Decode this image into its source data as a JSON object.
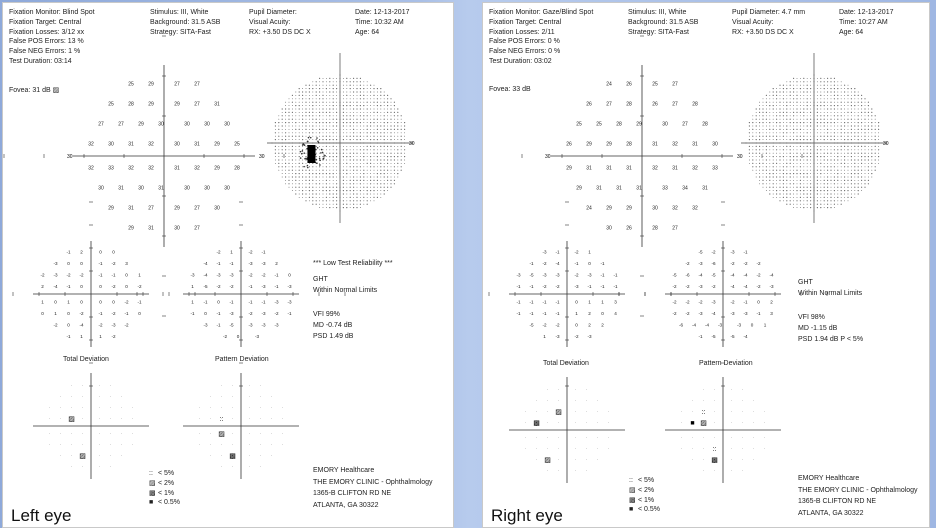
{
  "left": {
    "header": {
      "col1": [
        "Fixation Monitor: Blind Spot",
        "Fixation Target: Central",
        "Fixation Losses: 3/12 xx",
        "False POS Errors: 13 %",
        "False NEG Errors: 1 %",
        "Test Duration: 03:14"
      ],
      "col2": [
        "Stimulus: III, White",
        "Background: 31.5 ASB",
        "Strategy: SITA-Fast"
      ],
      "col3": [
        "Pupil Diameter:",
        "Visual Acuity:",
        "RX: +3.50 DS    DC  X"
      ],
      "col4": [
        "Date: 12-13-2017",
        "Time: 10:32 AM",
        "Age: 64"
      ]
    },
    "fovea": "Fovea: 31 dB",
    "axis_label": "30",
    "sens": [
      [
        "25",
        "29",
        "27",
        "27"
      ],
      [
        "25",
        "28",
        "29",
        "29",
        "27",
        "31"
      ],
      [
        "27",
        "27",
        "29",
        "30",
        "30",
        "30",
        "30"
      ],
      [
        "32",
        "30",
        "31",
        "32",
        "30",
        "31",
        "29",
        "25"
      ],
      [
        "32",
        "33",
        "32",
        "32",
        "31",
        "32",
        "29",
        "28"
      ],
      [
        "30",
        "31",
        "30",
        "31",
        "30",
        "30",
        "30"
      ],
      [
        "29",
        "31",
        "27",
        "29",
        "27",
        "30"
      ],
      [
        "29",
        "31",
        "30",
        "27"
      ]
    ],
    "td": [
      [
        "-1",
        "2",
        "0",
        "0"
      ],
      [
        "-3",
        "0",
        "0",
        "-1",
        "-2",
        "3"
      ],
      [
        "-2",
        "-3",
        "-2",
        "-2",
        "-1",
        "-1",
        "0",
        "1"
      ],
      [
        "2",
        "-4",
        "-1",
        "0",
        "0",
        "-2",
        "0",
        "-2"
      ],
      [
        "1",
        "0",
        "1",
        "0",
        "0",
        "0",
        "-2",
        "-1"
      ],
      [
        "0",
        "1",
        "0",
        "-2",
        "-1",
        "-2",
        "-1",
        "0"
      ],
      [
        "-2",
        "0",
        "-4",
        "-2",
        "-3",
        "-2"
      ],
      [
        "-1",
        "1",
        "1",
        "-2"
      ]
    ],
    "pd": [
      [
        "-2",
        "1",
        "-2",
        "-1"
      ],
      [
        "-4",
        "-1",
        "-1",
        "-3",
        "-3",
        "2"
      ],
      [
        "-3",
        "-4",
        "-3",
        "-3",
        "-2",
        "-2",
        "-1",
        "0"
      ],
      [
        "1",
        "-5",
        "-2",
        "-2",
        "-1",
        "-3",
        "-1",
        "-3"
      ],
      [
        "1",
        "-1",
        "0",
        "-1",
        "-1",
        "-1",
        "-3",
        "-3"
      ],
      [
        "-1",
        "0",
        "-1",
        "-3",
        "-2",
        "-3",
        "-2",
        "-1"
      ],
      [
        "-3",
        "-1",
        "-5",
        "-3",
        "-3",
        "-3"
      ],
      [
        "-2",
        "0",
        "-3"
      ]
    ],
    "reliability": "*** Low Test Reliability ***",
    "ght_label": "GHT",
    "ght_value": "Within Normal Limits",
    "vfi": "VFI     99%",
    "md": "MD     -0.74 dB",
    "psd": "PSD      1.49 dB",
    "td_title": "Total Deviation",
    "pd_title": "Pattern Deviation",
    "legend": [
      {
        "sym": "::",
        "label": "< 5%"
      },
      {
        "sym": "▨",
        "label": "< 2%"
      },
      {
        "sym": "▩",
        "label": "< 1%"
      },
      {
        "sym": "■",
        "label": "< 0.5%"
      }
    ],
    "address": [
      "EMORY Healthcare",
      "THE EMORY CLINIC - Ophthalmology",
      "1365-B CLIFTON RD NE",
      "ATLANTA, GA 30322"
    ],
    "caption": "Left eye"
  },
  "right": {
    "header": {
      "col1": [
        "Fixation Monitor: Gaze/Blind Spot",
        "Fixation Target: Central",
        "Fixation Losses: 2/11",
        "False POS Errors: 0 %",
        "False NEG Errors: 0 %",
        "Test Duration: 03:02"
      ],
      "col2": [
        "Stimulus: III, White",
        "Background: 31.5 ASB",
        "Strategy: SITA-Fast"
      ],
      "col3": [
        "Pupil Diameter: 4.7 mm",
        "Visual Acuity:",
        "RX: +3.50 DS    DC  X"
      ],
      "col4": [
        "Date: 12-13-2017",
        "Time: 10:27 AM",
        "Age: 64"
      ]
    },
    "fovea": "Fovea: 33 dB",
    "axis_label": "30",
    "sens": [
      [
        "24",
        "26",
        "25",
        "27"
      ],
      [
        "26",
        "27",
        "28",
        "26",
        "27",
        "28"
      ],
      [
        "25",
        "25",
        "28",
        "29",
        "30",
        "27",
        "28"
      ],
      [
        "26",
        "29",
        "29",
        "28",
        "31",
        "32",
        "31",
        "30"
      ],
      [
        "29",
        "31",
        "31",
        "31",
        "32",
        "31",
        "32",
        "33"
      ],
      [
        "29",
        "31",
        "31",
        "31",
        "33",
        "34",
        "31"
      ],
      [
        "24",
        "29",
        "29",
        "30",
        "32",
        "32"
      ],
      [
        "30",
        "26",
        "28",
        "27"
      ]
    ],
    "td": [
      [
        "-3",
        "-1",
        "-2",
        "1"
      ],
      [
        "-1",
        "-2",
        "-4",
        "-1",
        "0",
        "-1"
      ],
      [
        "-3",
        "-5",
        "-3",
        "-3",
        "-2",
        "-3",
        "-1",
        "-1"
      ],
      [
        "-1",
        "-1",
        "-2",
        "-2",
        "-3",
        "-1",
        "-1",
        "-1"
      ],
      [
        "-1",
        "-1",
        "-1",
        "-1",
        "0",
        "1",
        "1",
        "3"
      ],
      [
        "-1",
        "-1",
        "-1",
        "-1",
        "1",
        "2",
        "0",
        "4"
      ],
      [
        "-5",
        "-2",
        "-2",
        "0",
        "2",
        "2"
      ],
      [
        "1",
        "-3",
        "-2",
        "-3"
      ]
    ],
    "pd": [
      [
        "-5",
        "-2",
        "-3",
        "-1"
      ],
      [
        "-2",
        "-3",
        "-6",
        "-2",
        "-2",
        "-2"
      ],
      [
        "-5",
        "-6",
        "-4",
        "-5",
        "-4",
        "-4",
        "-2",
        "-4"
      ],
      [
        "-2",
        "-2",
        "-3",
        "-2",
        "-4",
        "-4",
        "-2",
        "-3"
      ],
      [
        "-2",
        "-2",
        "-2",
        "-3",
        "-2",
        "-1",
        "0",
        "2"
      ],
      [
        "-2",
        "-2",
        "-3",
        "-4",
        "-3",
        "-3",
        "-1",
        "3"
      ],
      [
        "-6",
        "-4",
        "-4",
        "-3",
        "-3",
        "0",
        "1"
      ],
      [
        "-1",
        "-5",
        "-5",
        "-4"
      ]
    ],
    "reliability": "",
    "ght_label": "GHT",
    "ght_value": "Within Normal Limits",
    "vfi": "VFI     98%",
    "md": "MD     -1.15 dB",
    "psd": "PSD      1.94 dB  P < 5%",
    "td_title": "Total Deviation",
    "pd_title": "Pattern Deviation",
    "legend": [
      {
        "sym": "::",
        "label": "< 5%"
      },
      {
        "sym": "▨",
        "label": "< 2%"
      },
      {
        "sym": "▩",
        "label": "< 1%"
      },
      {
        "sym": "■",
        "label": "< 0.5%"
      }
    ],
    "address": [
      "EMORY Healthcare",
      "THE EMORY CLINIC - Ophthalmology",
      "1365-B CLIFTON RD NE",
      "ATLANTA, GA 30322"
    ],
    "caption": "Right eye"
  },
  "colors": {
    "ink": "#222222",
    "background_gradient": "#a9bfe6"
  }
}
